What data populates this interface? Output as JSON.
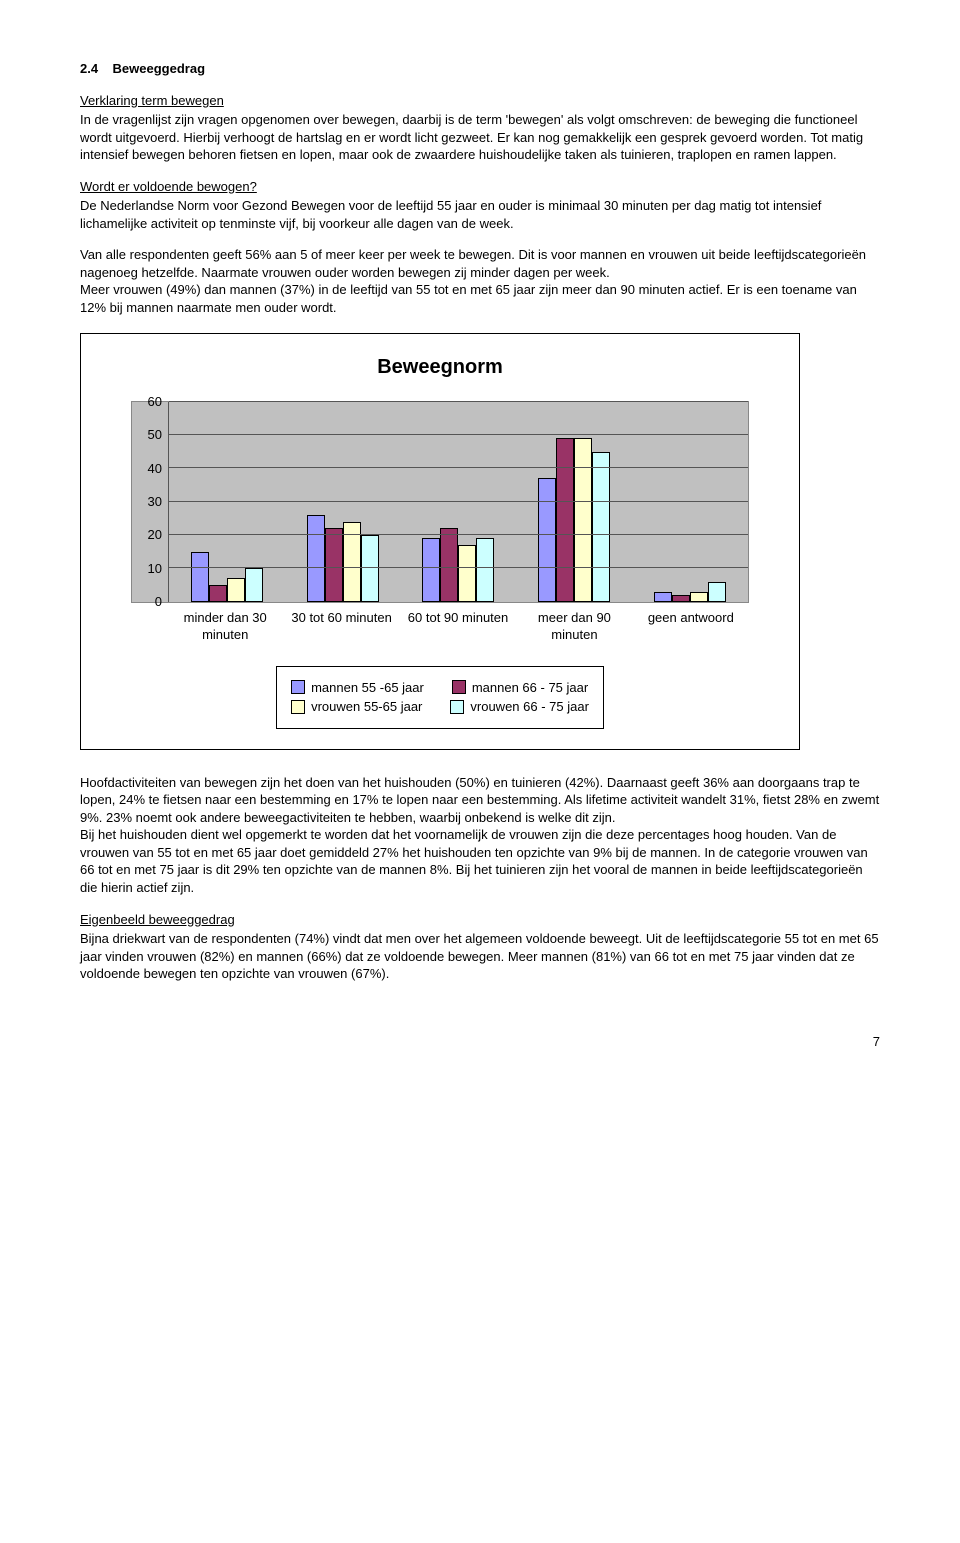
{
  "section_number": "2.4",
  "section_title": "Beweeggedrag",
  "sub1_title": "Verklaring term bewegen",
  "para1": "In de vragenlijst zijn vragen opgenomen over bewegen, daarbij is de term 'bewegen' als volgt omschreven: de beweging die functioneel wordt uitgevoerd. Hierbij verhoogt de hartslag en er wordt licht gezweet. Er kan nog gemakkelijk een gesprek gevoerd worden. Tot matig intensief bewegen behoren fietsen en lopen, maar ook de zwaardere huishoudelijke taken als tuinieren, traplopen en ramen lappen.",
  "sub2_title": "Wordt er voldoende bewogen?",
  "para2": "De Nederlandse Norm voor Gezond Bewegen voor de leeftijd 55 jaar en ouder is minimaal 30 minuten per dag matig tot intensief lichamelijke activiteit op tenminste vijf, bij voorkeur alle dagen van de week.",
  "para3": "Van alle respondenten geeft 56% aan 5 of meer keer per week te bewegen. Dit is voor mannen en vrouwen uit beide leeftijdscategorieën nagenoeg hetzelfde. Naarmate vrouwen ouder worden bewegen zij minder dagen per week.",
  "para4": "Meer vrouwen (49%) dan mannen (37%) in de leeftijd van 55 tot en met 65 jaar zijn meer dan 90 minuten actief. Er is een toename van 12% bij mannen naarmate men ouder wordt.",
  "chart": {
    "title": "Beweegnorm",
    "ymax": 60,
    "ytick_step": 10,
    "yticks": [
      60,
      50,
      40,
      30,
      20,
      10,
      0
    ],
    "background_color": "#c0c0c0",
    "grid_color": "#555555",
    "categories": [
      "minder dan 30 minuten",
      "30 tot 60 minuten",
      "60 tot 90 minuten",
      "meer dan 90 minuten",
      "geen antwoord"
    ],
    "series": [
      {
        "label": "mannen 55 -65 jaar",
        "color": "#9999ff",
        "values": [
          15,
          26,
          19,
          37,
          3
        ]
      },
      {
        "label": "mannen 66 - 75 jaar",
        "color": "#993366",
        "values": [
          5,
          22,
          22,
          49,
          2
        ]
      },
      {
        "label": "vrouwen 55-65 jaar",
        "color": "#ffffcc",
        "values": [
          7,
          24,
          17,
          49,
          3
        ]
      },
      {
        "label": "vrouwen 66 - 75 jaar",
        "color": "#ccffff",
        "values": [
          10,
          20,
          19,
          45,
          6
        ]
      }
    ]
  },
  "para5": "Hoofdactiviteiten van bewegen zijn het doen van het huishouden (50%) en tuinieren (42%). Daarnaast geeft 36% aan doorgaans trap te lopen, 24% te fietsen naar een bestemming en 17% te lopen naar een bestemming. Als lifetime activiteit wandelt 31%, fietst 28% en zwemt 9%. 23% noemt ook andere beweegactiviteiten te hebben, waarbij onbekend is welke dit zijn.",
  "para6": "Bij het huishouden dient wel opgemerkt te worden dat het voornamelijk de vrouwen zijn die deze percentages hoog houden. Van de vrouwen van 55 tot en met 65 jaar doet gemiddeld 27% het huishouden ten opzichte van 9% bij de mannen. In de categorie vrouwen van 66 tot en met 75 jaar is dit 29% ten opzichte van de mannen 8%. Bij het tuinieren zijn het vooral de mannen in beide leeftijdscategorieën die hierin actief zijn.",
  "sub3_title": "Eigenbeeld beweeggedrag",
  "para7": "Bijna driekwart van de respondenten (74%) vindt dat men over het algemeen voldoende beweegt. Uit de leeftijdscategorie 55 tot en met 65 jaar vinden vrouwen (82%) en mannen (66%) dat ze voldoende bewegen. Meer mannen (81%) van 66 tot en met 75 jaar vinden dat ze voldoende bewegen ten opzichte van vrouwen (67%).",
  "page_num": "7"
}
